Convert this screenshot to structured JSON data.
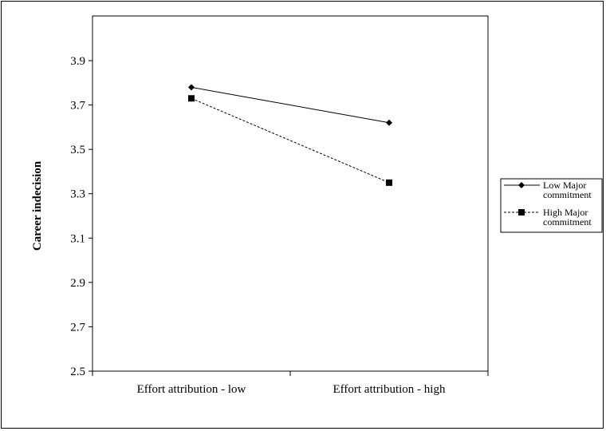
{
  "chart_data": {
    "type": "line",
    "title": "",
    "xlabel": "",
    "ylabel": "Career indecision",
    "categories": [
      "Effort attribution - low",
      "Effort attribution - high"
    ],
    "ylim": [
      2.5,
      3.9
    ],
    "yticks": [
      "2.5",
      "2.7",
      "2.9",
      "3.1",
      "3.3",
      "3.5",
      "3.7",
      "3.9"
    ],
    "grid": false,
    "legend_position": "right",
    "series": [
      {
        "name_lines": [
          "Low Major",
          "commitment"
        ],
        "values": [
          3.78,
          3.62
        ],
        "marker": "diamond",
        "line_style": "solid",
        "color": "#000000"
      },
      {
        "name_lines": [
          "High Major",
          "commitment"
        ],
        "values": [
          3.73,
          3.35
        ],
        "marker": "square",
        "line_style": "dashed",
        "color": "#000000"
      }
    ]
  }
}
